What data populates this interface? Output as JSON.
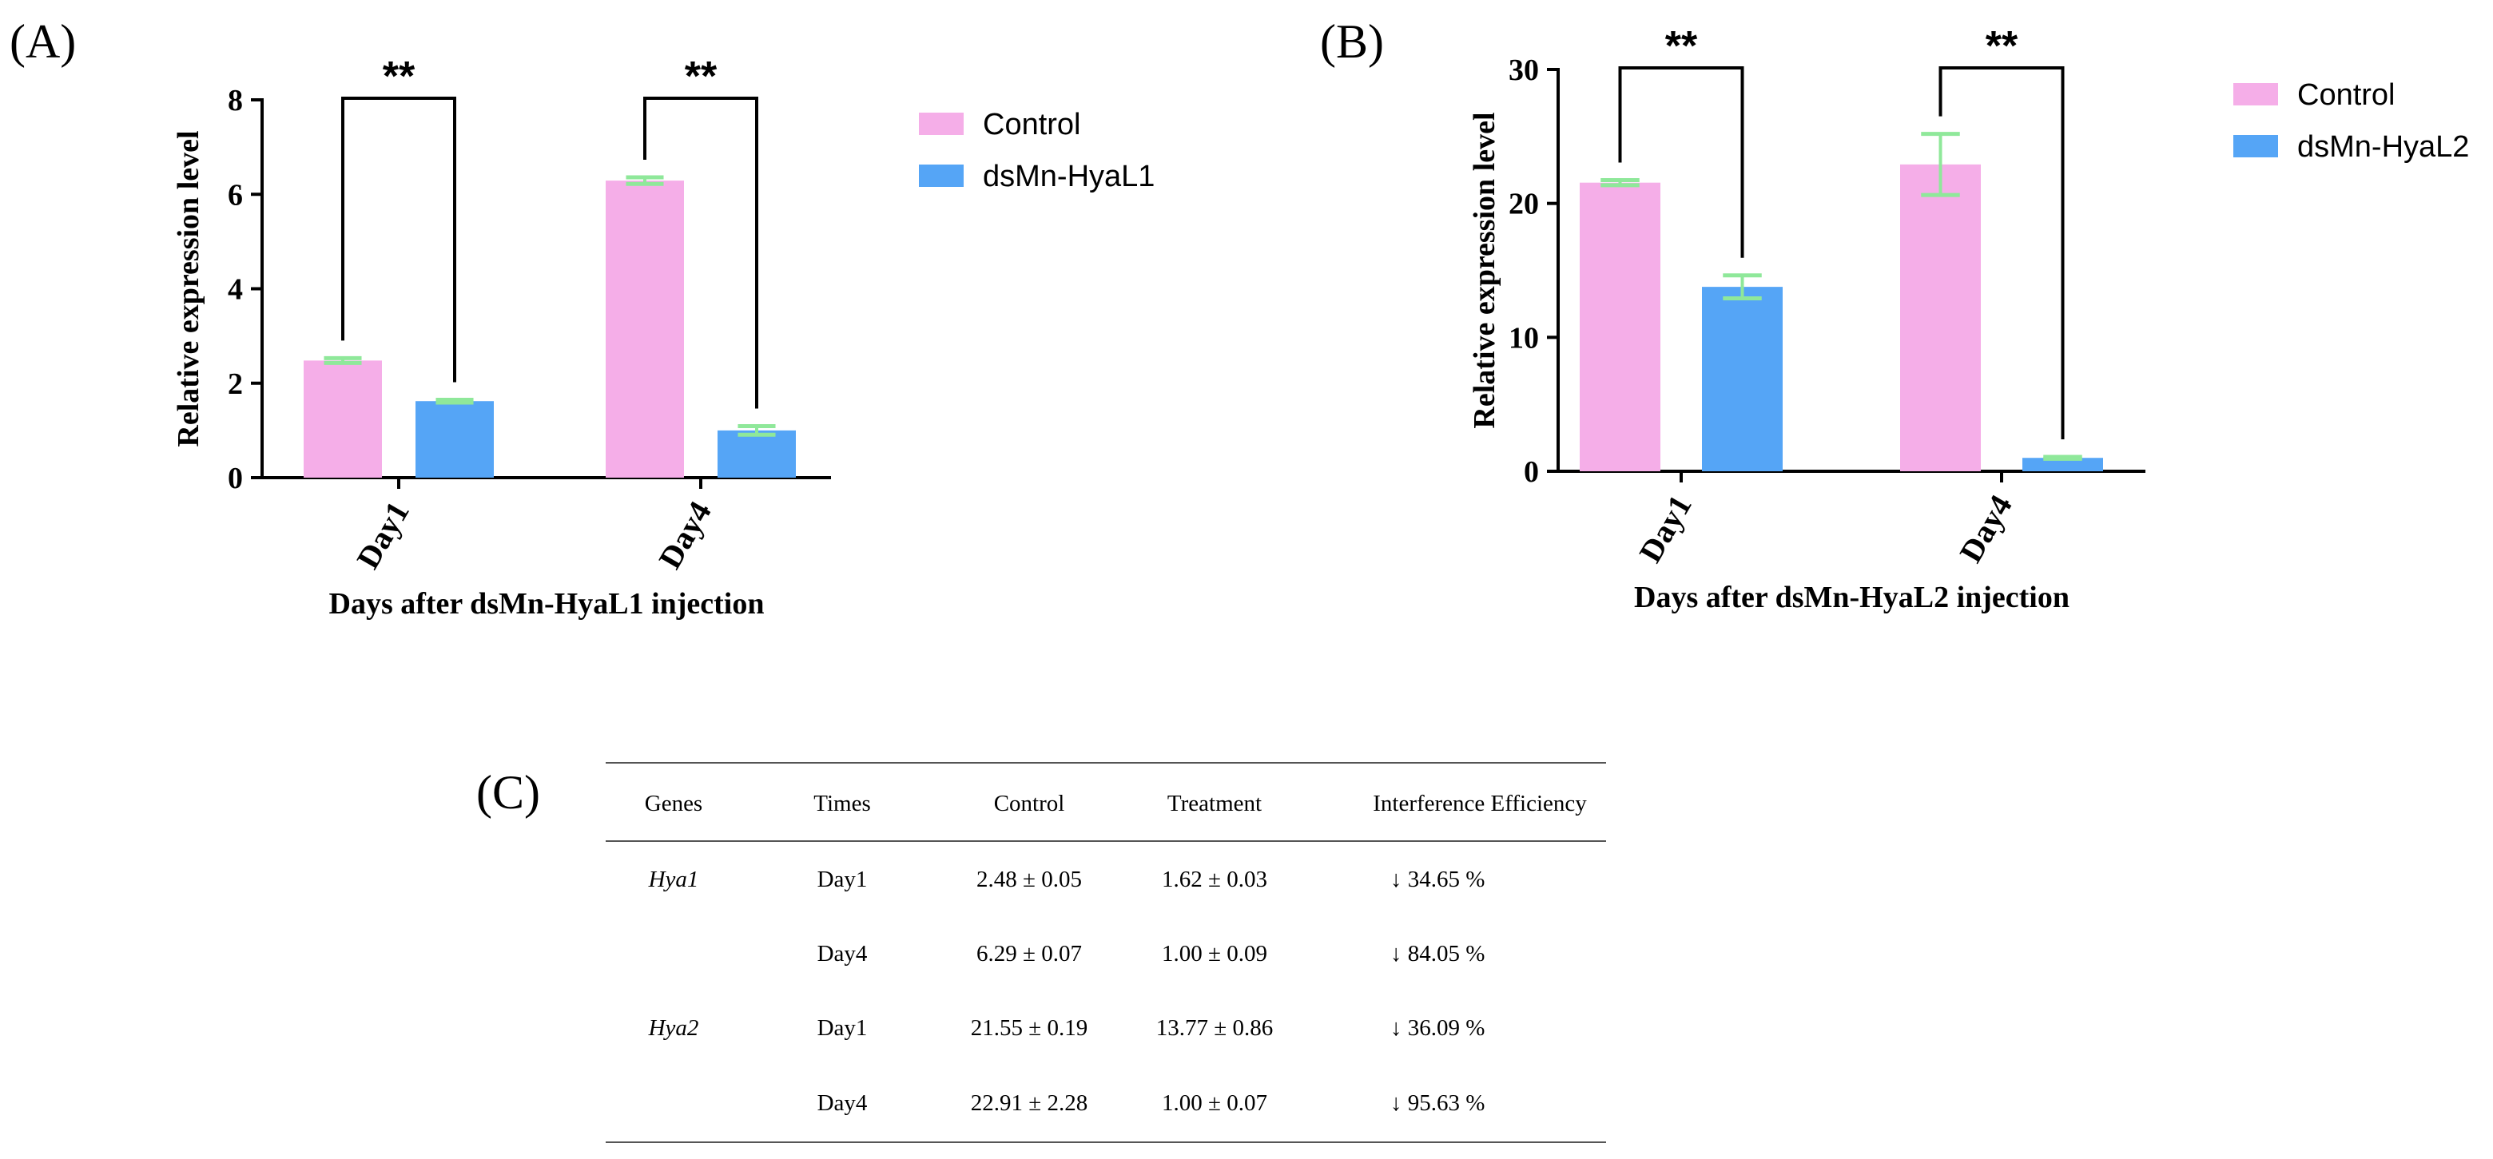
{
  "colors": {
    "control": "#f5aee8",
    "treatment": "#55a5f6",
    "error_bar": "#8fe89a",
    "axis": "#000000"
  },
  "panels": {
    "a_label": "(A)",
    "b_label": "(B)",
    "c_label": "(C)"
  },
  "chart_data": [
    {
      "id": "A",
      "type": "bar",
      "title": "",
      "categories": [
        "Day1",
        "Day4"
      ],
      "series": [
        {
          "name": "Control",
          "values": [
            2.48,
            6.29
          ],
          "errors": [
            0.05,
            0.07
          ]
        },
        {
          "name": "dsMn-HyaL1",
          "values": [
            1.62,
            1.0
          ],
          "errors": [
            0.03,
            0.09
          ]
        }
      ],
      "significance": [
        "**",
        "**"
      ],
      "xlabel": "Days after dsMn-HyaL1 injection",
      "ylabel": "Relative expression level",
      "ylim": [
        0,
        8
      ],
      "yticks": [
        "0",
        "2",
        "4",
        "6",
        "8"
      ],
      "legend": "top-right",
      "grid": false
    },
    {
      "id": "B",
      "type": "bar",
      "title": "",
      "categories": [
        "Day1",
        "Day4"
      ],
      "series": [
        {
          "name": "Control",
          "values": [
            21.55,
            22.91
          ],
          "errors": [
            0.19,
            2.28
          ]
        },
        {
          "name": "dsMn-HyaL2",
          "values": [
            13.77,
            1.0
          ],
          "errors": [
            0.86,
            0.07
          ]
        }
      ],
      "significance": [
        "**",
        "**"
      ],
      "xlabel": "Days after dsMn-HyaL2 injection",
      "ylabel": "Relative expression level",
      "ylim": [
        0,
        30
      ],
      "yticks": [
        "0",
        "10",
        "20",
        "30"
      ],
      "legend": "top-right",
      "grid": false
    },
    {
      "id": "C",
      "type": "table",
      "headers": [
        "Genes",
        "Times",
        "Control",
        "Treatment",
        "Interference Efficiency"
      ],
      "rows": [
        [
          "Hya1",
          "Day1",
          "2.48 ± 0.05",
          "1.62 ± 0.03",
          "↓   34.65 %"
        ],
        [
          "",
          "Day4",
          "6.29 ± 0.07",
          "1.00 ± 0.09",
          "↓   84.05 %"
        ],
        [
          "Hya2",
          "Day1",
          "21.55 ± 0.19",
          "13.77 ± 0.86",
          "↓   36.09 %"
        ],
        [
          "",
          "Day4",
          "22.91 ± 2.28",
          "1.00 ± 0.07",
          "↓   95.63 %"
        ]
      ]
    }
  ]
}
